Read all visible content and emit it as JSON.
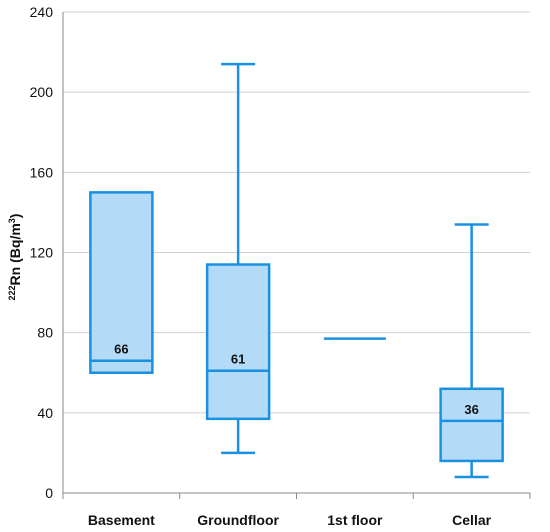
{
  "chart_data": {
    "type": "box",
    "title": "",
    "xlabel": "",
    "ylabel": {
      "sup": "222",
      "text": "Rn (Bq/m",
      "unit_sup": "3",
      "close": ")"
    },
    "ylim": [
      0,
      240
    ],
    "yticks": [
      0,
      40,
      80,
      120,
      160,
      200,
      240
    ],
    "grid": true,
    "categories": [
      "Basement",
      "Groundfloor",
      "1st floor",
      "Cellar"
    ],
    "boxes": [
      {
        "category": "Basement",
        "min": 60,
        "q1": 60,
        "median": 66,
        "q3": 150,
        "max": 150,
        "median_label": "66"
      },
      {
        "category": "Groundfloor",
        "min": 20,
        "q1": 37,
        "median": 61,
        "q3": 114,
        "max": 214,
        "median_label": "61"
      },
      {
        "category": "1st floor",
        "min": 77,
        "q1": 77,
        "median": 77,
        "q3": 77,
        "max": 77,
        "median_label": ""
      },
      {
        "category": "Cellar",
        "min": 8,
        "q1": 16,
        "median": 36,
        "q3": 52,
        "max": 134,
        "median_label": "36"
      }
    ],
    "colors": {
      "box_fill": "#b3dbf7",
      "box_stroke": "#1a90e0",
      "grid": "#d0d0d0",
      "axis": "#888888"
    }
  }
}
